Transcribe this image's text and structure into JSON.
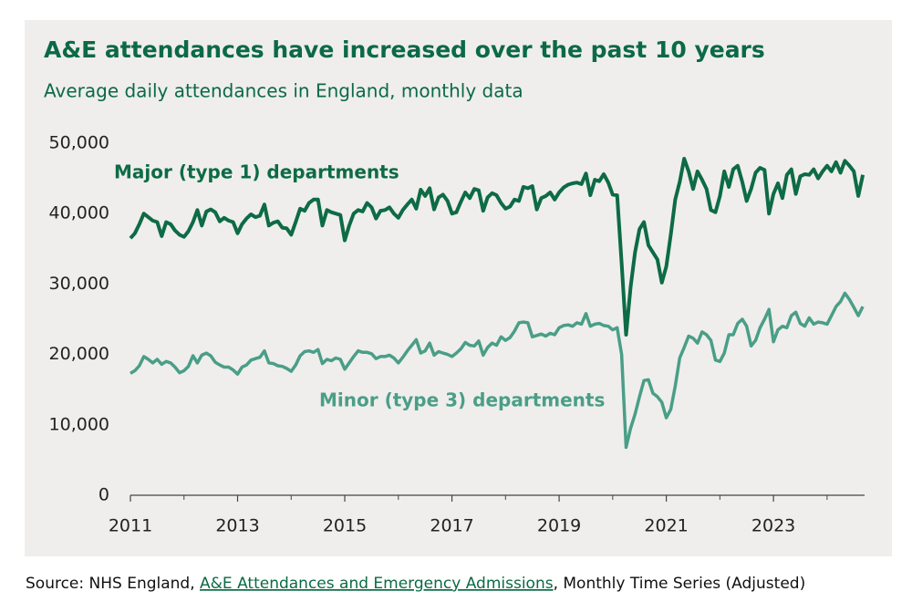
{
  "chart_data": {
    "type": "line",
    "title": "A&E attendances have increased over the past 10 years",
    "subtitle": "Average daily attendances in England, monthly data",
    "source": {
      "prefix": "Source: NHS England, ",
      "link": "A&E Attendances and Emergency Admissions",
      "suffix": ", Monthly Time Series (Adjusted)"
    },
    "xlim": [
      2011,
      2024.7
    ],
    "xticks": [
      2011,
      2013,
      2015,
      2017,
      2019,
      2021,
      2023
    ],
    "xticks_minor": [
      2012,
      2014,
      2016,
      2018,
      2020,
      2022,
      2024
    ],
    "ylim": [
      0,
      50000
    ],
    "yticks": [
      0,
      {
        "value": 10000,
        "label": "10,000"
      },
      {
        "value": 20000,
        "label": "20,000"
      },
      {
        "value": 30000,
        "label": "30,000"
      },
      {
        "value": 40000,
        "label": "40,000"
      },
      {
        "value": 50000,
        "label": "50,000"
      }
    ],
    "grid": false,
    "x": [
      2011.0,
      2011.083,
      2011.167,
      2011.25,
      2011.333,
      2011.417,
      2011.5,
      2011.583,
      2011.667,
      2011.75,
      2011.833,
      2011.917,
      2012.0,
      2012.083,
      2012.167,
      2012.25,
      2012.333,
      2012.417,
      2012.5,
      2012.583,
      2012.667,
      2012.75,
      2012.833,
      2012.917,
      2013.0,
      2013.083,
      2013.167,
      2013.25,
      2013.333,
      2013.417,
      2013.5,
      2013.583,
      2013.667,
      2013.75,
      2013.833,
      2013.917,
      2014.0,
      2014.083,
      2014.167,
      2014.25,
      2014.333,
      2014.417,
      2014.5,
      2014.583,
      2014.667,
      2014.75,
      2014.833,
      2014.917,
      2015.0,
      2015.083,
      2015.167,
      2015.25,
      2015.333,
      2015.417,
      2015.5,
      2015.583,
      2015.667,
      2015.75,
      2015.833,
      2015.917,
      2016.0,
      2016.083,
      2016.167,
      2016.25,
      2016.333,
      2016.417,
      2016.5,
      2016.583,
      2016.667,
      2016.75,
      2016.833,
      2016.917,
      2017.0,
      2017.083,
      2017.167,
      2017.25,
      2017.333,
      2017.417,
      2017.5,
      2017.583,
      2017.667,
      2017.75,
      2017.833,
      2017.917,
      2018.0,
      2018.083,
      2018.167,
      2018.25,
      2018.333,
      2018.417,
      2018.5,
      2018.583,
      2018.667,
      2018.75,
      2018.833,
      2018.917,
      2019.0,
      2019.083,
      2019.167,
      2019.25,
      2019.333,
      2019.417,
      2019.5,
      2019.583,
      2019.667,
      2019.75,
      2019.833,
      2019.917,
      2020.0,
      2020.083,
      2020.167,
      2020.25,
      2020.333,
      2020.417,
      2020.5,
      2020.583,
      2020.667,
      2020.75,
      2020.833,
      2020.917,
      2021.0,
      2021.083,
      2021.167,
      2021.25,
      2021.333,
      2021.417,
      2021.5,
      2021.583,
      2021.667,
      2021.75,
      2021.833,
      2021.917,
      2022.0,
      2022.083,
      2022.167,
      2022.25,
      2022.333,
      2022.417,
      2022.5,
      2022.583,
      2022.667,
      2022.75,
      2022.833,
      2022.917,
      2023.0,
      2023.083,
      2023.167,
      2023.25,
      2023.333,
      2023.417,
      2023.5,
      2023.583,
      2023.667,
      2023.75,
      2023.833,
      2023.917,
      2024.0,
      2024.083,
      2024.167,
      2024.25,
      2024.333,
      2024.417,
      2024.5,
      2024.583,
      2024.667
    ],
    "series": [
      {
        "name": "Major (type 1) departments",
        "color": "#0d6b45",
        "values": [
          36500,
          37200,
          38500,
          40000,
          39500,
          39000,
          38800,
          36800,
          38800,
          38500,
          37600,
          37000,
          36700,
          37500,
          38800,
          40500,
          38300,
          40300,
          40600,
          40200,
          38900,
          39400,
          39000,
          38800,
          37200,
          38500,
          39300,
          39900,
          39500,
          39700,
          41300,
          38300,
          38700,
          38900,
          38000,
          37900,
          37000,
          38800,
          40700,
          40400,
          41500,
          42000,
          42000,
          38300,
          40500,
          40200,
          40000,
          39800,
          36200,
          38300,
          40000,
          40500,
          40300,
          41500,
          40900,
          39300,
          40400,
          40500,
          40900,
          40000,
          39400,
          40500,
          41300,
          42000,
          40700,
          43400,
          42500,
          43600,
          40600,
          42300,
          42700,
          41800,
          40000,
          40200,
          41700,
          43000,
          42200,
          43500,
          43300,
          40400,
          42300,
          42900,
          42600,
          41500,
          40700,
          41000,
          42000,
          41800,
          43800,
          43600,
          43900,
          40600,
          42200,
          42500,
          43000,
          42000,
          43000,
          43700,
          44100,
          44300,
          44400,
          44200,
          45700,
          42600,
          44800,
          44600,
          45600,
          44400,
          42700,
          42600,
          33000,
          22800,
          29500,
          34500,
          37800,
          38800,
          35500,
          34500,
          33500,
          30200,
          32500,
          37000,
          42000,
          44500,
          47800,
          46000,
          43500,
          46000,
          44800,
          43500,
          40500,
          40200,
          42500,
          46000,
          43800,
          46300,
          46800,
          44500,
          41800,
          43500,
          45800,
          46500,
          46200,
          40000,
          42800,
          44300,
          42200,
          45500,
          46300,
          42800,
          45300,
          45600,
          45500,
          46300,
          45000,
          46000,
          46800,
          46000,
          47300,
          45800,
          47500,
          46800,
          46000,
          42500,
          45500
        ]
      },
      {
        "name": "Minor (type 3) departments",
        "color": "#4a9e87",
        "values": [
          17300,
          17700,
          18400,
          19700,
          19300,
          18800,
          19300,
          18600,
          19000,
          18800,
          18200,
          17400,
          17700,
          18300,
          19800,
          18800,
          19900,
          20200,
          19800,
          18900,
          18500,
          18200,
          18200,
          17800,
          17200,
          18200,
          18500,
          19200,
          19400,
          19600,
          20500,
          18800,
          18700,
          18400,
          18300,
          18000,
          17600,
          18500,
          19800,
          20400,
          20500,
          20300,
          20700,
          18700,
          19300,
          19100,
          19500,
          19300,
          17900,
          18800,
          19700,
          20500,
          20300,
          20300,
          20100,
          19400,
          19700,
          19700,
          19900,
          19500,
          18800,
          19600,
          20500,
          21300,
          22100,
          20200,
          20500,
          21600,
          19900,
          20400,
          20200,
          20000,
          19700,
          20200,
          20800,
          21700,
          21300,
          21200,
          21900,
          19900,
          21000,
          21600,
          21300,
          22500,
          22000,
          22400,
          23300,
          24500,
          24600,
          24500,
          22500,
          22700,
          22900,
          22600,
          23000,
          22800,
          23800,
          24100,
          24200,
          24000,
          24500,
          24300,
          25800,
          24000,
          24300,
          24400,
          24100,
          24000,
          23500,
          23800,
          20000,
          6800,
          9500,
          11500,
          14000,
          16300,
          16400,
          14500,
          14000,
          13200,
          11000,
          12200,
          15500,
          19500,
          21000,
          22600,
          22300,
          21600,
          23200,
          22800,
          22000,
          19200,
          19000,
          20200,
          22800,
          22800,
          24400,
          25000,
          24000,
          21200,
          22000,
          23800,
          25000,
          26400,
          21800,
          23500,
          24000,
          23800,
          25500,
          26000,
          24400,
          24000,
          25200,
          24300,
          24600,
          24500,
          24300,
          25500,
          26800,
          27500,
          28700,
          27800,
          26700,
          25500,
          26800
        ]
      }
    ]
  }
}
